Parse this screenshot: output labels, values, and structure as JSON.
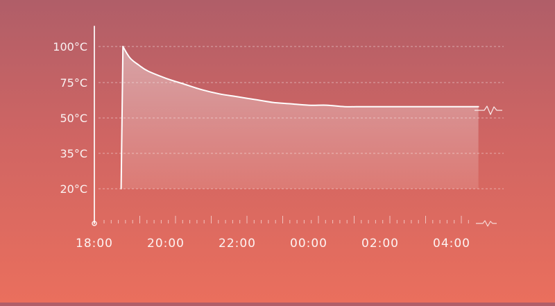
{
  "chart_data": {
    "type": "area",
    "title": "",
    "xlabel": "",
    "ylabel": "",
    "y_tick_labels": [
      "100°C",
      "75°C",
      "50°C",
      "35°C",
      "20°C"
    ],
    "y_tick_values": [
      100,
      75,
      50,
      35,
      20
    ],
    "x_tick_labels": [
      "18:00",
      "20:00",
      "22:00",
      "00:00",
      "02:00",
      "04:00"
    ],
    "grid": true,
    "series": [
      {
        "x": [
          "18:45",
          "18:48",
          "19:00",
          "19:15",
          "19:30",
          "20:00",
          "20:30",
          "21:00",
          "21:30",
          "22:00",
          "22:30",
          "23:00",
          "23:30",
          "00:00",
          "00:30",
          "01:00",
          "01:30",
          "02:00",
          "02:30",
          "03:00",
          "03:30",
          "04:00",
          "04:30",
          "04:45"
        ],
        "values": [
          20,
          100,
          92,
          87,
          83,
          78,
          74,
          70,
          67,
          65,
          63,
          61,
          60,
          59,
          59,
          58,
          58,
          58,
          58,
          58,
          58,
          58,
          58,
          58
        ]
      }
    ]
  },
  "colors": {
    "line": "#ffffff",
    "grid": "rgba(255,255,255,0.45)",
    "area_top": "rgba(255,255,255,0.42)",
    "area_bottom": "rgba(255,255,255,0.12)"
  },
  "icons": {
    "axis_break_top": "pulse-break-icon",
    "axis_break_bottom": "pulse-break-icon"
  }
}
